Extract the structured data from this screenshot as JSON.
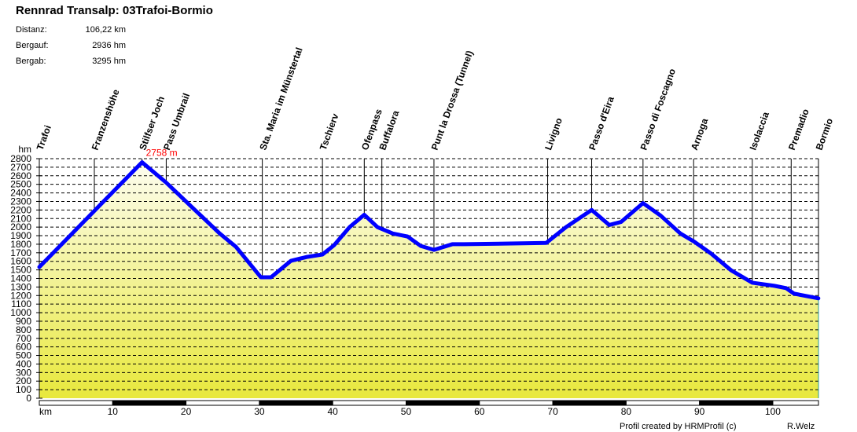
{
  "title": "Rennrad Transalp: 03Trafoi-Bormio",
  "stats": [
    {
      "label": "Distanz:",
      "value": "106,22 km"
    },
    {
      "label": "Bergauf:",
      "value": "2936 hm"
    },
    {
      "label": "Bergab:",
      "value": "3295 hm"
    }
  ],
  "footer": {
    "credit": "Profil created by HRMProfil (c)",
    "author": "R.Welz"
  },
  "chart_data": {
    "type": "area",
    "title": "Rennrad Transalp: 03Trafoi-Bormio",
    "xlabel": "km",
    "ylabel": "hm",
    "xlim": [
      0,
      106.22
    ],
    "ylim": [
      0,
      2800
    ],
    "xticks": [
      10,
      20,
      30,
      40,
      50,
      60,
      70,
      80,
      90,
      100
    ],
    "yticks": [
      0,
      100,
      200,
      300,
      400,
      500,
      600,
      700,
      800,
      900,
      1000,
      1100,
      1200,
      1300,
      1400,
      1500,
      1600,
      1700,
      1800,
      1900,
      2000,
      2100,
      2200,
      2300,
      2400,
      2500,
      2600,
      2700,
      2800
    ],
    "max_label": "2758 m",
    "max_point": {
      "km": 14.0,
      "hm": 2758
    },
    "colors": {
      "line": "#0000ff",
      "fill_top": "#fdfdf0",
      "fill_bottom": "#e8e83c",
      "max_label": "#ff0000"
    },
    "profile": [
      [
        0,
        1533
      ],
      [
        7.5,
        2190
      ],
      [
        14.0,
        2758
      ],
      [
        17.3,
        2520
      ],
      [
        20.9,
        2226
      ],
      [
        24.6,
        1925
      ],
      [
        26.8,
        1770
      ],
      [
        30.2,
        1414
      ],
      [
        31.6,
        1414
      ],
      [
        34.3,
        1606
      ],
      [
        36.4,
        1650
      ],
      [
        38.6,
        1680
      ],
      [
        40.2,
        1790
      ],
      [
        42.3,
        2000
      ],
      [
        44.3,
        2144
      ],
      [
        46.1,
        2000
      ],
      [
        48.2,
        1925
      ],
      [
        50.2,
        1890
      ],
      [
        52.0,
        1780
      ],
      [
        53.8,
        1734
      ],
      [
        56.3,
        1800
      ],
      [
        57.9,
        1800
      ],
      [
        69.1,
        1815
      ],
      [
        71.8,
        2000
      ],
      [
        75.3,
        2200
      ],
      [
        77.7,
        2025
      ],
      [
        79.3,
        2060
      ],
      [
        82.3,
        2280
      ],
      [
        84.7,
        2135
      ],
      [
        87.4,
        1925
      ],
      [
        89.2,
        1834
      ],
      [
        91.6,
        1690
      ],
      [
        94.3,
        1496
      ],
      [
        97.2,
        1350
      ],
      [
        100.2,
        1314
      ],
      [
        101.8,
        1287
      ],
      [
        102.9,
        1222
      ],
      [
        106.2,
        1168
      ]
    ],
    "waypoints": [
      {
        "name": "Trafoi",
        "km": 0
      },
      {
        "name": "Franzenshöhe",
        "km": 7.5
      },
      {
        "name": "Stilfser Joch",
        "km": 14.0
      },
      {
        "name": "Pass Umbrail",
        "km": 17.3
      },
      {
        "name": "Sta. Maria im Münstertal",
        "km": 30.4
      },
      {
        "name": "Tschierv",
        "km": 38.6
      },
      {
        "name": "Ofenpass",
        "km": 44.3
      },
      {
        "name": "Buffalora",
        "km": 46.7
      },
      {
        "name": "Punt la Drossa (Tunnel)",
        "km": 53.8
      },
      {
        "name": "Livigno",
        "km": 69.3
      },
      {
        "name": "Passo d'Eira",
        "km": 75.3
      },
      {
        "name": "Passo di Foscagno",
        "km": 82.3
      },
      {
        "name": "Arnoga",
        "km": 89.2
      },
      {
        "name": "Isolaccia",
        "km": 97.2
      },
      {
        "name": "Premadio",
        "km": 102.5
      },
      {
        "name": "Bormio",
        "km": 106.22
      }
    ]
  }
}
